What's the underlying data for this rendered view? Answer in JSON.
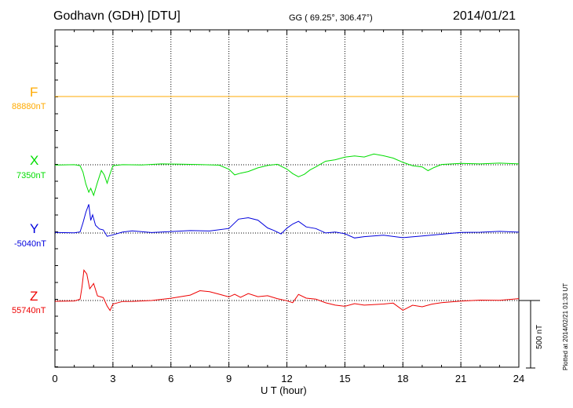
{
  "header": {
    "station": "Godhavn (GDH)  [DTU]",
    "coords": "GG ( 69.25°, 306.47°)",
    "date": "2014/01/21"
  },
  "footer": {
    "xlabel": "U T (hour)",
    "plotted": "Plotted at 2014/02/21 01:33 UT",
    "scale_label": "500 nT"
  },
  "colors": {
    "F": "#ffaa00",
    "X": "#00dd00",
    "Y": "#0000dd",
    "Z": "#ee0000"
  },
  "chart_data": {
    "type": "line",
    "xlabel": "U T (hour)",
    "ylabel": "",
    "xlim": [
      0,
      24
    ],
    "xticks": [
      0,
      3,
      6,
      9,
      12,
      15,
      18,
      21,
      24
    ],
    "grid": "vertical dotted at every 3 hours",
    "scale_bar_nT": 500,
    "channels": [
      {
        "name": "F",
        "baseline": "88880nT",
        "baseline_nT": 88880,
        "x": [
          0,
          24
        ],
        "y": [
          0,
          0
        ]
      },
      {
        "name": "X",
        "baseline": "7350nT",
        "baseline_nT": 7350,
        "x": [
          0,
          1.0,
          1.3,
          1.45,
          1.6,
          1.75,
          1.85,
          2.0,
          2.2,
          2.4,
          2.55,
          2.7,
          2.85,
          3.0,
          3.5,
          4.5,
          5.5,
          6.5,
          7.5,
          8.5,
          9.0,
          9.3,
          9.6,
          10.0,
          10.5,
          11.0,
          11.5,
          12.0,
          12.3,
          12.6,
          12.9,
          13.2,
          13.5,
          14.0,
          14.5,
          15.0,
          15.5,
          16.0,
          16.5,
          17.0,
          17.5,
          18.0,
          18.5,
          19.0,
          19.3,
          19.6,
          20.0,
          21.0,
          22.0,
          23.0,
          24.0
        ],
        "y": [
          0,
          0,
          -10,
          -60,
          -150,
          -210,
          -180,
          -230,
          -130,
          -40,
          -70,
          -130,
          -60,
          0,
          5,
          0,
          5,
          0,
          -5,
          -10,
          -40,
          -80,
          -65,
          -50,
          -20,
          0,
          10,
          -25,
          -60,
          -85,
          -70,
          -40,
          -20,
          20,
          30,
          50,
          60,
          55,
          80,
          70,
          55,
          25,
          0,
          -10,
          -40,
          -20,
          0,
          5,
          0,
          5,
          0
        ]
      },
      {
        "name": "Y",
        "baseline": "-5040nT",
        "baseline_nT": -5040,
        "x": [
          0,
          1.0,
          1.3,
          1.45,
          1.6,
          1.75,
          1.85,
          1.95,
          2.1,
          2.3,
          2.5,
          2.7,
          3.0,
          3.5,
          4.0,
          5.0,
          6.0,
          7.0,
          8.0,
          9.0,
          9.5,
          10.0,
          10.5,
          11.0,
          11.3,
          11.7,
          12.0,
          12.3,
          12.6,
          13.0,
          13.5,
          14.0,
          14.5,
          15.0,
          15.5,
          16.0,
          17.0,
          18.0,
          19.0,
          20.0,
          21.0,
          22.0,
          23.0,
          24.0
        ],
        "y": [
          0,
          0,
          10,
          80,
          160,
          220,
          100,
          140,
          60,
          30,
          20,
          -30,
          -20,
          0,
          10,
          0,
          10,
          20,
          20,
          40,
          110,
          120,
          100,
          40,
          20,
          -10,
          30,
          60,
          80,
          40,
          30,
          0,
          10,
          0,
          -30,
          -20,
          -10,
          -30,
          -20,
          -10,
          0,
          0,
          5,
          0
        ]
      },
      {
        "name": "Z",
        "baseline": "55740nT",
        "baseline_nT": 55740,
        "x": [
          0,
          1.0,
          1.3,
          1.4,
          1.5,
          1.65,
          1.8,
          2.0,
          2.2,
          2.5,
          2.7,
          2.85,
          3.0,
          3.5,
          4.0,
          5.0,
          6.0,
          7.0,
          7.5,
          8.0,
          8.5,
          9.0,
          9.3,
          9.6,
          10.0,
          10.5,
          11.0,
          11.5,
          12.0,
          12.3,
          12.6,
          13.0,
          13.5,
          14.0,
          14.5,
          15.0,
          15.5,
          16.0,
          17.0,
          17.5,
          18.0,
          18.5,
          19.0,
          19.5,
          20.0,
          21.0,
          22.0,
          23.0,
          24.0
        ],
        "y": [
          0,
          0,
          10,
          100,
          220,
          190,
          80,
          120,
          30,
          20,
          -40,
          -70,
          -20,
          0,
          0,
          5,
          20,
          40,
          70,
          60,
          40,
          20,
          40,
          20,
          50,
          30,
          40,
          20,
          5,
          -10,
          50,
          20,
          10,
          -20,
          -40,
          -50,
          -30,
          -40,
          -30,
          -20,
          -70,
          -30,
          -40,
          -20,
          -10,
          0,
          5,
          0,
          10
        ]
      }
    ]
  }
}
